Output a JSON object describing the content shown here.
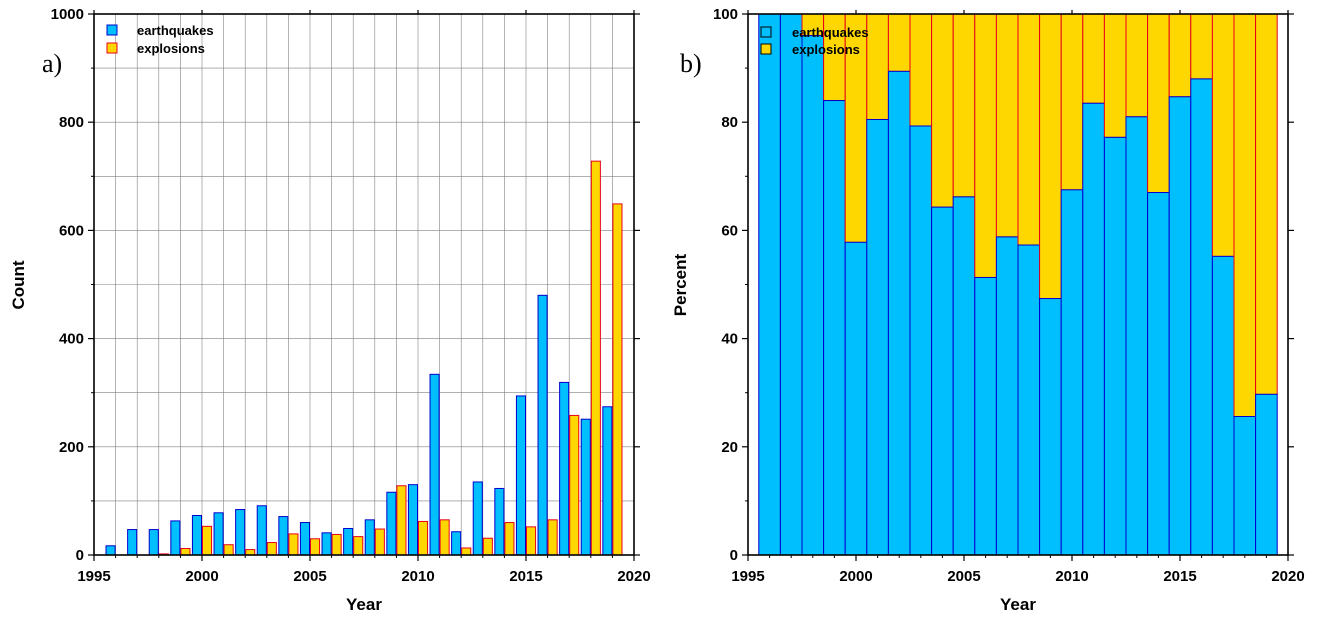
{
  "colors": {
    "earthquakes_fill": "#00bfff",
    "earthquakes_stroke": "#0000cd",
    "explosions_fill": "#ffd700",
    "explosions_stroke": "#e8001a",
    "grid": "#808080"
  },
  "chart_data": [
    {
      "type": "bar",
      "panel_label": "a)",
      "xlabel": "Year",
      "ylabel": "Count",
      "xlim": [
        1995,
        2020
      ],
      "ylim": [
        0,
        1000
      ],
      "x_ticks": [
        "1995",
        "2000",
        "2005",
        "2010",
        "2015",
        "2020"
      ],
      "y_ticks": [
        "0",
        "200",
        "400",
        "600",
        "800",
        "1000"
      ],
      "grid": true,
      "legend_position": "top-left",
      "years": [
        1996,
        1997,
        1998,
        1999,
        2000,
        2001,
        2002,
        2003,
        2004,
        2005,
        2006,
        2007,
        2008,
        2009,
        2010,
        2011,
        2012,
        2013,
        2014,
        2015,
        2016,
        2017,
        2018,
        2019
      ],
      "series": [
        {
          "name": "earthquakes",
          "values": [
            17,
            47,
            47,
            63,
            73,
            78,
            84,
            91,
            71,
            60,
            41,
            49,
            65,
            116,
            130,
            334,
            43,
            135,
            123,
            294,
            480,
            319,
            251,
            274
          ]
        },
        {
          "name": "explosions",
          "values": [
            0,
            0,
            2,
            12,
            53,
            19,
            10,
            23,
            39,
            30,
            38,
            34,
            48,
            128,
            62,
            65,
            13,
            31,
            60,
            52,
            65,
            258,
            728,
            649
          ]
        }
      ]
    },
    {
      "type": "bar",
      "stacked": true,
      "panel_label": "b)",
      "xlabel": "Year",
      "ylabel": "Percent",
      "xlim": [
        1995,
        2020
      ],
      "ylim": [
        0,
        100
      ],
      "x_ticks": [
        "1995",
        "2000",
        "2005",
        "2010",
        "2015",
        "2020"
      ],
      "y_ticks": [
        "0",
        "20",
        "40",
        "60",
        "80",
        "100"
      ],
      "grid": false,
      "legend_position": "top-left",
      "years": [
        1996,
        1997,
        1998,
        1999,
        2000,
        2001,
        2002,
        2003,
        2004,
        2005,
        2006,
        2007,
        2008,
        2009,
        2010,
        2011,
        2012,
        2013,
        2014,
        2015,
        2016,
        2017,
        2018,
        2019
      ],
      "series": [
        {
          "name": "earthquakes",
          "values": [
            100,
            100,
            96,
            84,
            57.8,
            80.5,
            89.4,
            79.3,
            64.3,
            66.2,
            51.3,
            58.8,
            57.3,
            47.4,
            67.5,
            83.5,
            77.2,
            81,
            67,
            84.7,
            88,
            55.2,
            25.6,
            29.7
          ]
        },
        {
          "name": "explosions",
          "values": [
            0,
            0,
            4,
            16,
            42.2,
            19.5,
            10.6,
            20.7,
            35.7,
            33.8,
            48.7,
            41.2,
            42.7,
            52.6,
            32.5,
            16.5,
            22.8,
            19,
            33,
            15.3,
            12,
            44.8,
            74.4,
            70.3
          ]
        }
      ]
    }
  ]
}
